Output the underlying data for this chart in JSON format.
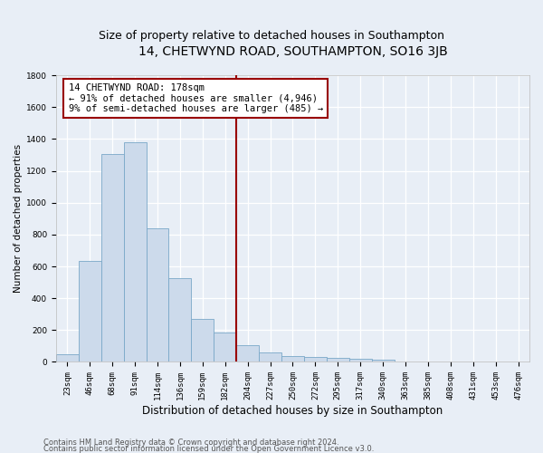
{
  "title": "14, CHETWYND ROAD, SOUTHAMPTON, SO16 3JB",
  "subtitle": "Size of property relative to detached houses in Southampton",
  "xlabel": "Distribution of detached houses by size in Southampton",
  "ylabel": "Number of detached properties",
  "categories": [
    "23sqm",
    "46sqm",
    "68sqm",
    "91sqm",
    "114sqm",
    "136sqm",
    "159sqm",
    "182sqm",
    "204sqm",
    "227sqm",
    "250sqm",
    "272sqm",
    "295sqm",
    "317sqm",
    "340sqm",
    "363sqm",
    "385sqm",
    "408sqm",
    "431sqm",
    "453sqm",
    "476sqm"
  ],
  "values": [
    50,
    635,
    1305,
    1380,
    840,
    525,
    270,
    185,
    105,
    60,
    35,
    30,
    25,
    20,
    15,
    5,
    5,
    5,
    5,
    5,
    5
  ],
  "bar_color": "#ccdaeb",
  "bar_edge_color": "#7aa8c8",
  "vline_color": "#990000",
  "annotation_line1": "14 CHETWYND ROAD: 178sqm",
  "annotation_line2": "← 91% of detached houses are smaller (4,946)",
  "annotation_line3": "9% of semi-detached houses are larger (485) →",
  "annotation_box_edgecolor": "#990000",
  "ylim": [
    0,
    1800
  ],
  "yticks": [
    0,
    200,
    400,
    600,
    800,
    1000,
    1200,
    1400,
    1600,
    1800
  ],
  "footnote1": "Contains HM Land Registry data © Crown copyright and database right 2024.",
  "footnote2": "Contains public sector information licensed under the Open Government Licence v3.0.",
  "bg_color": "#e8eef6",
  "grid_color": "#d0d8e4",
  "title_fontsize": 10,
  "subtitle_fontsize": 9,
  "xlabel_fontsize": 8.5,
  "ylabel_fontsize": 7.5,
  "tick_fontsize": 6.5,
  "annotation_fontsize": 7.5,
  "footnote_fontsize": 6.0,
  "vline_xindex": 7.5
}
